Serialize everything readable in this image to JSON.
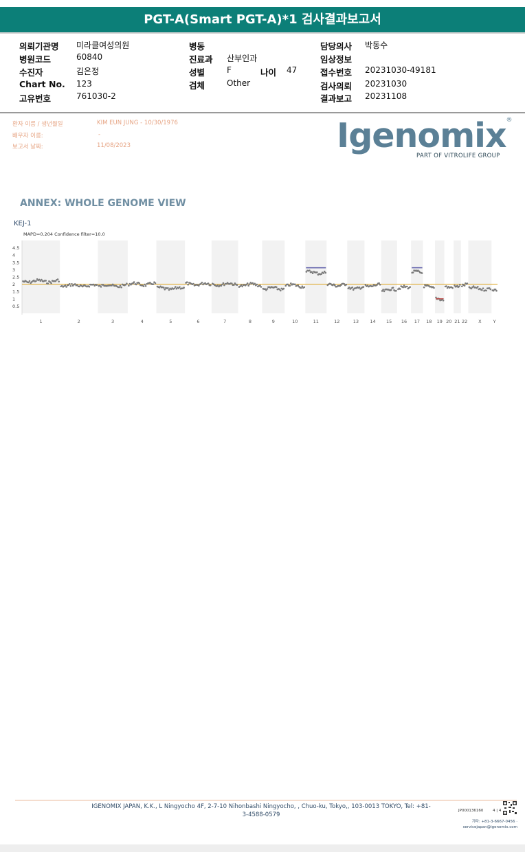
{
  "header": {
    "title": "PGT-A(Smart PGT-A)*1 검사결과보고서"
  },
  "info": {
    "col1": [
      {
        "label": "의뢰기관명",
        "value": "미라클여성의원"
      },
      {
        "label": "병원코드",
        "value": "60840"
      },
      {
        "label": "수진자",
        "value": "김은정"
      },
      {
        "label": "Chart No.",
        "value": "123"
      },
      {
        "label": "고유번호",
        "value": "761030-2"
      }
    ],
    "col2": [
      {
        "label": "병동",
        "value": ""
      },
      {
        "label": "진료과",
        "value": "산부인과"
      },
      {
        "label": "성별",
        "value": "F"
      },
      {
        "label": "검체",
        "value": "Other"
      }
    ],
    "age": {
      "label": "나이",
      "value": "47"
    },
    "col3": [
      {
        "label": "담당의사",
        "value": "박동수"
      },
      {
        "label": "임상정보",
        "value": ""
      },
      {
        "label": "접수번호",
        "value": "20231030-49181"
      },
      {
        "label": "검사의뢰",
        "value": "20231030"
      },
      {
        "label": "결과보고",
        "value": "20231108"
      }
    ]
  },
  "patient": {
    "name_label": "환자 이름 / 생년월일",
    "name_value": "KIM EUN JUNG - 10/30/1976",
    "partner_label": "배우자 이름:",
    "partner_value": "-",
    "report_label": "보고서 날짜:",
    "report_value": "11/08/2023"
  },
  "logo": {
    "word": "Igenomix",
    "registered": "®",
    "sub": "PART OF VITROLIFE GROUP"
  },
  "annex": {
    "title": "ANNEX: WHOLE GENOME VIEW",
    "sample": "KEJ-1",
    "mapd": "MAPD=0.204 Confidence filter=10.0"
  },
  "colors": {
    "header": "#0c7f78",
    "baseline": "#e0b040",
    "gain": "#6b6bb0",
    "loss": "#c0504d",
    "points": "#7a7a7a",
    "band": "#f2f2f2"
  },
  "chart_data": {
    "type": "scatter",
    "ylim": [
      0,
      5
    ],
    "yticks": [
      "4.5",
      "4",
      "3.5",
      "3",
      "2.5",
      "2",
      "1.5",
      "1",
      "0.5"
    ],
    "baseline": 2,
    "chromosomes": [
      "1",
      "2",
      "3",
      "4",
      "5",
      "6",
      "7",
      "8",
      "9",
      "10",
      "11",
      "12",
      "13",
      "14",
      "15",
      "16",
      "17",
      "18",
      "19",
      "20",
      "21",
      "22",
      "X",
      "Y"
    ],
    "copy_number": [
      2.2,
      1.9,
      1.9,
      2.0,
      1.7,
      2.0,
      2.0,
      1.95,
      1.7,
      1.9,
      2.8,
      1.95,
      1.75,
      1.9,
      1.6,
      1.75,
      2.8,
      1.8,
      1.0,
      1.85,
      1.9,
      1.95,
      1.7,
      1.55
    ],
    "gains": [
      "11",
      "17"
    ],
    "losses": [
      "19"
    ]
  },
  "footer": {
    "address": "IGENOMIX JAPAN, K.K., L Ningyocho 4F, 2-7-10 Nihonbashi Ningyocho, , Chuo-ku, Tokyo,, 103-0013 TOKYO, Tel: +81-3-4588-0579",
    "doc_id": "JP000136160",
    "page": "4 | 4",
    "contact1": "기타: +81-3-6667-0456 ·",
    "contact2": "servicejapan@igenomix.com"
  }
}
